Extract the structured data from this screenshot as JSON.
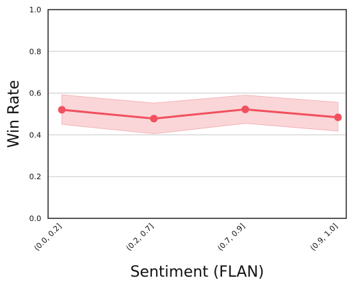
{
  "chart_data": {
    "type": "line",
    "xlabel": "Sentiment (FLAN)",
    "ylabel": "Win Rate",
    "categories": [
      "(0.0, 0.2]",
      "(0.2, 0.7]",
      "(0.7, 0.9]",
      "(0.9, 1.0]"
    ],
    "series": [
      {
        "values": [
          0.52,
          0.478,
          0.522,
          0.484
        ],
        "lower": [
          0.45,
          0.405,
          0.455,
          0.418
        ],
        "upper": [
          0.592,
          0.552,
          0.59,
          0.556
        ]
      }
    ],
    "ylim": [
      0.0,
      1.0
    ],
    "yticks": [
      "0.0",
      "0.2",
      "0.4",
      "0.6",
      "0.8",
      "1.0"
    ],
    "grid": "horizontal",
    "line_color": "#f0505f",
    "band_color": "#f8c4c8"
  }
}
